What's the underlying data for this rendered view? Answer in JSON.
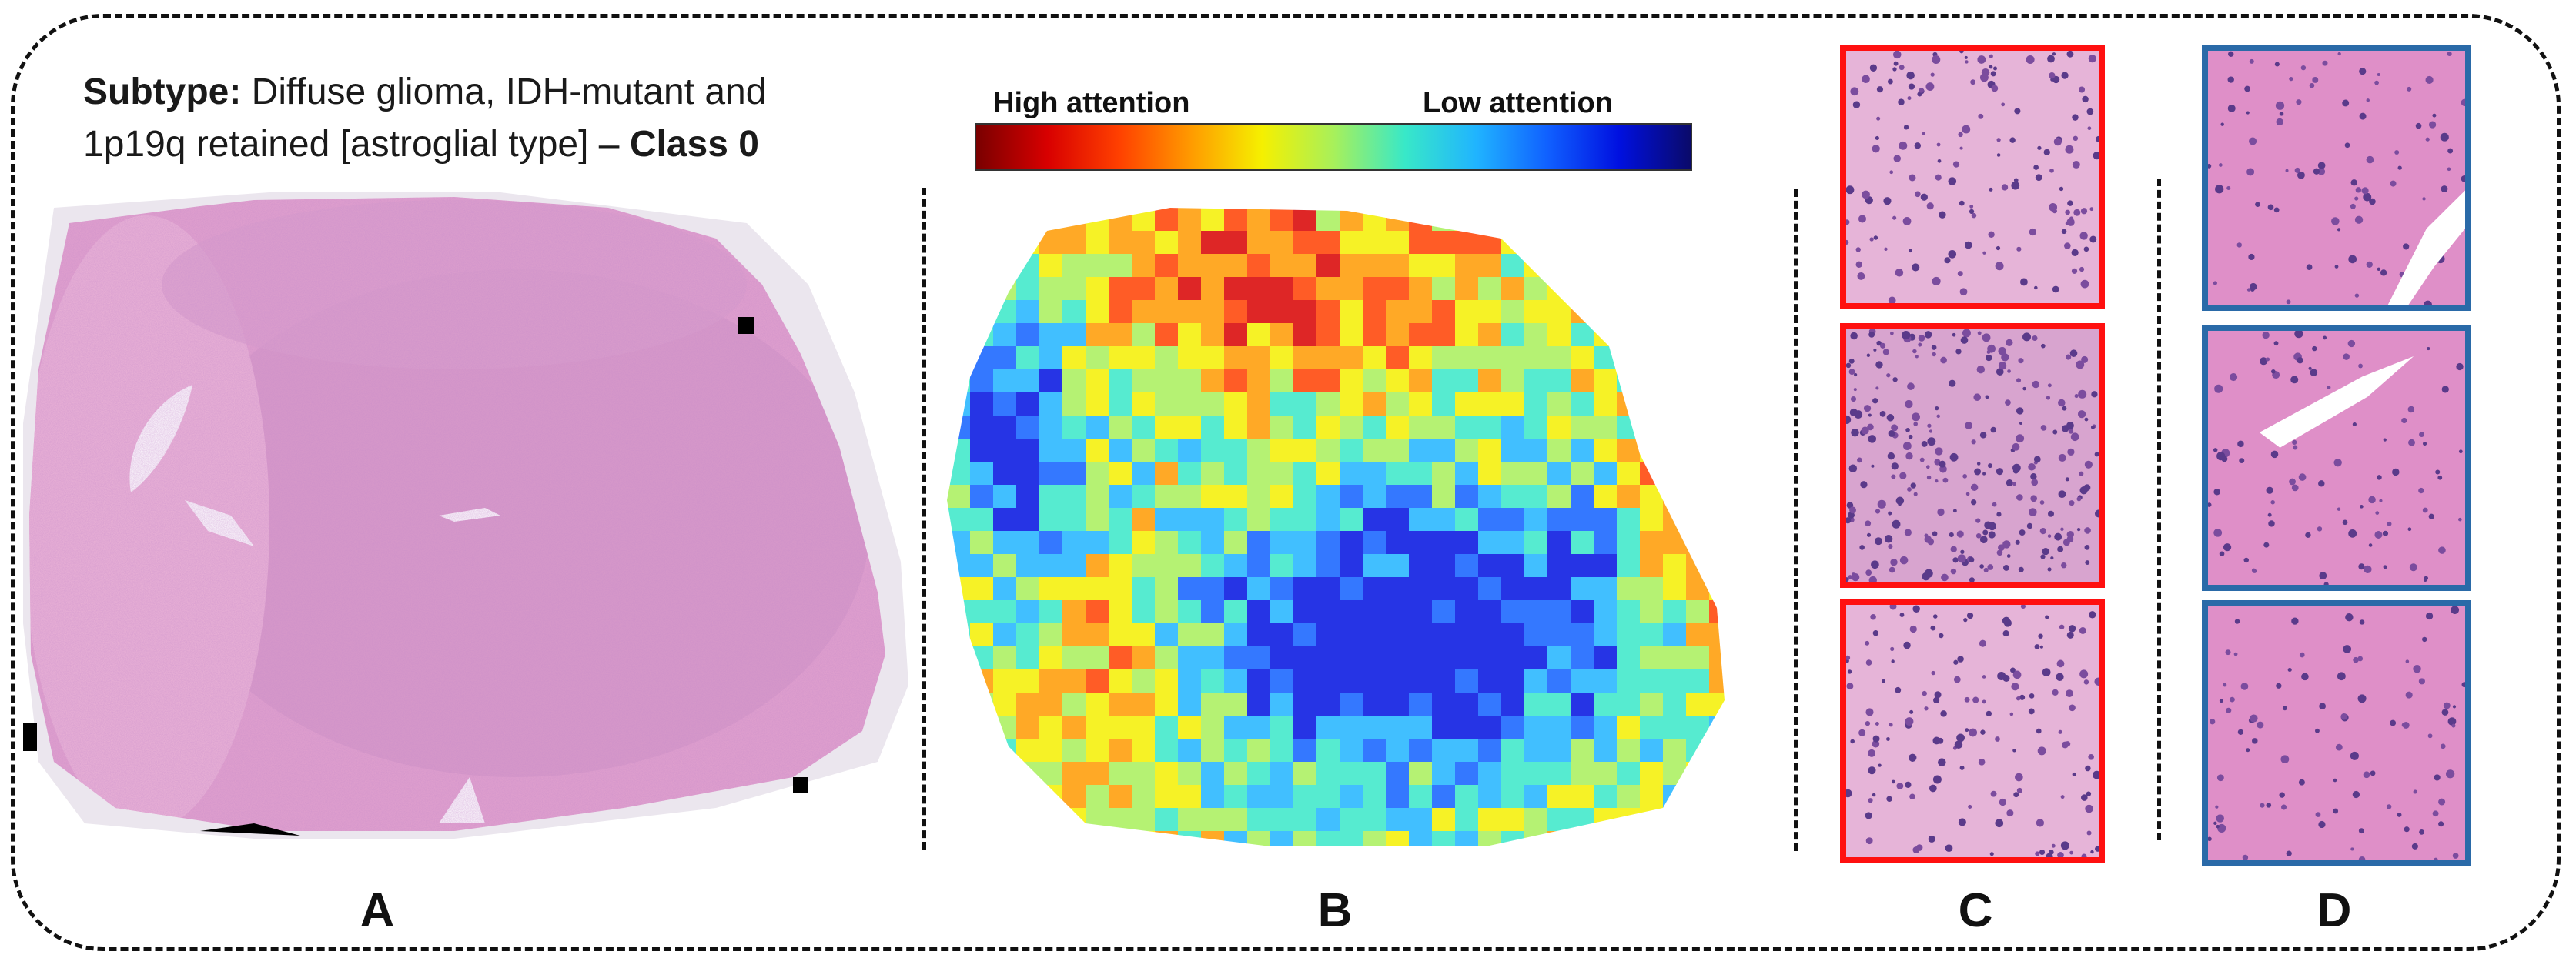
{
  "subtype": {
    "label": "Subtype:",
    "line1_rest": " Diffuse glioma, IDH-mutant and",
    "line2_main": "1p19q retained [astroglial type] – ",
    "class_label": "Class 0"
  },
  "panels": {
    "a": "A",
    "b": "B",
    "c": "C",
    "d": "D"
  },
  "colorbar": {
    "high_label": "High attention",
    "low_label": "Low attention",
    "stops": [
      "#7a0000",
      "#d80000",
      "#ff4000",
      "#ff9a00",
      "#f5f000",
      "#a8f05a",
      "#38e8c8",
      "#20b4ff",
      "#1060ff",
      "#0010e0",
      "#0a0a6a"
    ]
  },
  "colors": {
    "high_attention_border": "#ff1010",
    "low_attention_border": "#2a6aa8",
    "tissue_pink": "#e7a6cf"
  },
  "icons": {
    "slide": "he-stained-slide-image",
    "heatmap": "attention-heatmap-image",
    "tiles": "tissue-patch-image"
  }
}
